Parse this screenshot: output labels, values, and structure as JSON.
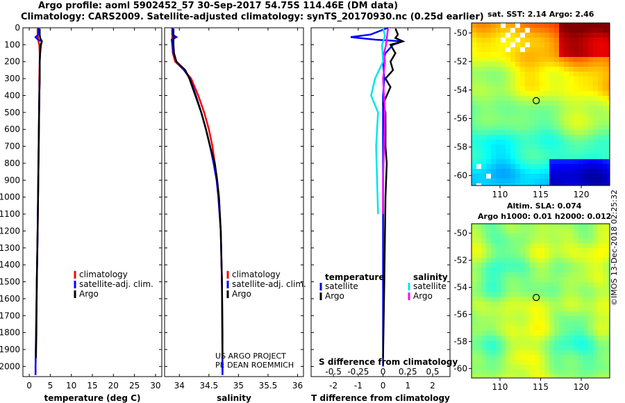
{
  "header": {
    "line1": "Argo profile: aoml 5902452_57 30-Sep-2017 54.75S 114.46E (DM data)",
    "line2": "Climatology: CARS2009. Satellite-adjusted climatology: synTS_20170930.nc (0.25d earlier)"
  },
  "colors": {
    "clim": "#ff0000",
    "sat": "#0000ff",
    "argo": "#000000",
    "sat_s": "#00e5ee",
    "argo_s": "#ff00ff"
  },
  "depth_axis": {
    "ticks": [
      0,
      100,
      200,
      300,
      400,
      500,
      600,
      700,
      800,
      900,
      1000,
      1100,
      1200,
      1300,
      1400,
      1500,
      1600,
      1700,
      1800,
      1900,
      2000
    ],
    "ylim": [
      0,
      2060
    ]
  },
  "chart_data": [
    {
      "type": "line",
      "name": "temperature-profile",
      "xlabel": "temperature (deg C)",
      "ylabel": "depth",
      "xlim": [
        -1.5,
        31.5
      ],
      "xticks": [
        0,
        5,
        10,
        15,
        20,
        25,
        30
      ],
      "series": [
        {
          "name": "climatology",
          "depth": [
            0,
            40,
            60,
            80,
            100,
            150,
            200,
            300,
            400,
            600,
            800,
            1000,
            1200,
            1500,
            2000,
            2050
          ],
          "values": [
            2.0,
            2.0,
            2.1,
            2.2,
            2.4,
            2.5,
            2.5,
            2.4,
            2.4,
            2.3,
            2.2,
            2.1,
            2.0,
            1.8,
            1.5,
            1.5
          ]
        },
        {
          "name": "satellite-adj. clim.",
          "depth": [
            0,
            40,
            55,
            70,
            80,
            100,
            150,
            200,
            300,
            400,
            600,
            800,
            1000,
            1200,
            1500,
            2000,
            2050
          ],
          "values": [
            2.2,
            2.2,
            1.5,
            2.1,
            3.0,
            2.8,
            2.6,
            2.5,
            2.5,
            2.4,
            2.3,
            2.2,
            2.1,
            2.0,
            1.8,
            1.5,
            1.5
          ]
        },
        {
          "name": "Argo",
          "depth": [
            5,
            40,
            60,
            80,
            100,
            150,
            200,
            300,
            400,
            600,
            800,
            1000,
            1200,
            1500,
            1800,
            1950
          ],
          "values": [
            2.5,
            2.5,
            2.6,
            3.0,
            2.7,
            2.6,
            2.5,
            2.5,
            2.4,
            2.3,
            2.2,
            2.1,
            2.0,
            1.8,
            1.7,
            1.6
          ]
        }
      ],
      "legend": [
        "climatology",
        "satellite-adj. clim.",
        "Argo"
      ]
    },
    {
      "type": "line",
      "name": "salinity-profile",
      "xlabel": "salinity",
      "ylabel": "depth",
      "xlim": [
        33.75,
        36.1
      ],
      "xticks": [
        34,
        34.5,
        35,
        35.5,
        36
      ],
      "series": [
        {
          "name": "climatology",
          "depth": [
            0,
            100,
            150,
            200,
            250,
            300,
            400,
            500,
            600,
            700,
            800,
            900,
            1000,
            1200,
            1500,
            2000,
            2050
          ],
          "values": [
            33.88,
            33.88,
            33.89,
            33.93,
            34.08,
            34.2,
            34.32,
            34.42,
            34.5,
            34.56,
            34.6,
            34.64,
            34.67,
            34.7,
            34.72,
            34.73,
            34.73
          ]
        },
        {
          "name": "satellite-adj. clim.",
          "depth": [
            0,
            40,
            55,
            70,
            100,
            150,
            200,
            250,
            300,
            400,
            500,
            600,
            700,
            800,
            900,
            1000,
            1200,
            1500,
            2000,
            2050
          ],
          "values": [
            33.88,
            33.88,
            33.95,
            33.87,
            33.88,
            33.9,
            33.95,
            34.08,
            34.18,
            34.28,
            34.37,
            34.45,
            34.52,
            34.58,
            34.63,
            34.66,
            34.7,
            34.72,
            34.73,
            34.73
          ]
        },
        {
          "name": "Argo",
          "depth": [
            5,
            100,
            150,
            200,
            250,
            300,
            400,
            500,
            600,
            700,
            800,
            900,
            1000,
            1200,
            1500,
            1800,
            1950
          ],
          "values": [
            33.9,
            33.9,
            33.91,
            33.95,
            34.1,
            34.17,
            34.27,
            34.37,
            34.45,
            34.52,
            34.6,
            34.64,
            34.67,
            34.7,
            34.72,
            34.73,
            34.73
          ]
        }
      ],
      "legend": [
        "climatology",
        "satellite-adj. clim.",
        "Argo"
      ],
      "annotation": [
        "US ARGO PROJECT",
        "PI: DEAN ROEMMICH"
      ]
    },
    {
      "type": "line",
      "name": "difference-profile",
      "xlabel": "T difference from climatology",
      "xlabel_top": "S difference from climatology",
      "xlim": [
        -2.9,
        2.7
      ],
      "xticks": [
        -2,
        -1,
        0,
        1,
        2
      ],
      "top_xticks": [
        "-0.5",
        "-0.25",
        "0",
        "0.25",
        "0.5"
      ],
      "legend_groups": {
        "temperature": [
          "satellite",
          "Argo"
        ],
        "salinity": [
          "satellite",
          "Argo"
        ]
      },
      "series": [
        {
          "name": "temperature satellite",
          "depth": [
            0,
            40,
            55,
            70,
            80,
            100,
            150,
            200,
            300,
            400,
            600,
            800,
            1000,
            1200,
            1500,
            2000
          ],
          "values": [
            0.2,
            -0.5,
            -1.3,
            -0.3,
            0.8,
            0.4,
            0.1,
            0.0,
            0.05,
            0.0,
            0.0,
            0.0,
            0.0,
            0.0,
            0.0,
            0.0
          ]
        },
        {
          "name": "temperature Argo",
          "depth": [
            5,
            40,
            60,
            80,
            100,
            150,
            200,
            250,
            300,
            350,
            400,
            450,
            500,
            600,
            700,
            800,
            1000,
            1500,
            1950
          ],
          "values": [
            0.5,
            0.6,
            0.5,
            0.8,
            0.3,
            0.5,
            0.3,
            0.4,
            0.1,
            0.3,
            0.15,
            0.0,
            0.1,
            0.1,
            0.1,
            0.15,
            0.1,
            0.05,
            0.0
          ]
        },
        {
          "name": "salinity satellite",
          "depth": [
            0,
            50,
            100,
            200,
            300,
            400,
            500,
            700,
            900,
            1100
          ],
          "values": [
            0.0,
            0.02,
            -0.01,
            0.0,
            -0.08,
            -0.12,
            -0.05,
            -0.07,
            -0.06,
            -0.05
          ]
        },
        {
          "name": "salinity Argo",
          "depth": [
            5,
            50,
            100,
            150,
            200,
            300,
            400,
            500,
            700,
            900,
            1100
          ],
          "values": [
            0.05,
            0.04,
            0.03,
            0.01,
            0.02,
            0.0,
            0.01,
            0.02,
            0.01,
            0.0,
            0.0
          ]
        }
      ]
    },
    {
      "type": "heatmap",
      "name": "sst-map",
      "title": "sat. SST: 2.14 Argo: 2.46",
      "xticks": [
        110,
        115,
        120
      ],
      "yticks": [
        -50,
        -52,
        -54,
        -56,
        -58,
        -60
      ],
      "xlim": [
        106.5,
        123.5
      ],
      "ylim": [
        -60.7,
        -49.3
      ],
      "marker": {
        "lon": 114.46,
        "lat": -54.75
      }
    },
    {
      "type": "heatmap",
      "name": "sla-map",
      "title": "Altim. SLA: 0.074",
      "subtitle": "Argo h1000: 0.01 h2000: 0.012",
      "xticks": [
        110,
        115,
        120
      ],
      "yticks": [
        -50,
        -52,
        -54,
        -56,
        -58,
        -60
      ],
      "xlim": [
        106.5,
        123.5
      ],
      "ylim": [
        -60.7,
        -49.3
      ],
      "marker": {
        "lon": 114.46,
        "lat": -54.75
      }
    }
  ],
  "footer_credit": "©IMOS 13-Dec-2018 02:25:32"
}
